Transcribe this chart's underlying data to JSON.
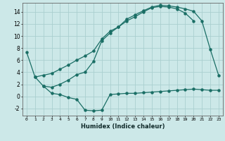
{
  "xlabel": "Humidex (Indice chaleur)",
  "bg_color": "#cce8e8",
  "grid_color": "#aacfcf",
  "line_color": "#1a6e65",
  "xlim": [
    -0.5,
    23.5
  ],
  "ylim": [
    -3.2,
    15.5
  ],
  "xticks": [
    0,
    1,
    2,
    3,
    4,
    5,
    6,
    7,
    8,
    9,
    10,
    11,
    12,
    13,
    14,
    15,
    16,
    17,
    18,
    19,
    20,
    21,
    22,
    23
  ],
  "yticks": [
    -2,
    0,
    2,
    4,
    6,
    8,
    10,
    12,
    14
  ],
  "line1_x": [
    0,
    1,
    2,
    3,
    4,
    5,
    6,
    7,
    8,
    9,
    10,
    11,
    12,
    13,
    14,
    15,
    16,
    17,
    18,
    19,
    20,
    21,
    22,
    23
  ],
  "line1_y": [
    7.3,
    3.2,
    1.7,
    0.5,
    0.3,
    -0.2,
    -0.5,
    -2.3,
    -2.4,
    -2.3,
    0.3,
    0.4,
    0.5,
    0.5,
    0.6,
    0.7,
    0.8,
    0.9,
    1.0,
    1.1,
    1.2,
    1.1,
    1.0,
    1.0
  ],
  "line2_x": [
    1,
    2,
    3,
    4,
    5,
    6,
    7,
    8,
    9,
    10,
    11,
    12,
    13,
    14,
    15,
    16,
    17,
    18,
    19,
    20
  ],
  "line2_y": [
    3.2,
    3.5,
    3.8,
    4.5,
    5.2,
    6.0,
    6.7,
    7.5,
    9.5,
    10.8,
    11.5,
    12.5,
    13.2,
    14.0,
    14.7,
    14.9,
    14.8,
    14.5,
    13.8,
    12.5
  ],
  "line3_x": [
    2,
    3,
    4,
    5,
    6,
    7,
    8,
    9,
    10,
    11,
    12,
    13,
    14,
    15,
    16,
    17,
    18,
    19,
    20,
    21,
    22,
    23
  ],
  "line3_y": [
    1.7,
    1.5,
    2.0,
    2.7,
    3.6,
    4.0,
    5.8,
    9.2,
    10.5,
    11.5,
    12.8,
    13.5,
    14.2,
    14.8,
    15.1,
    15.0,
    14.8,
    14.5,
    14.1,
    12.5,
    7.8,
    3.5
  ]
}
